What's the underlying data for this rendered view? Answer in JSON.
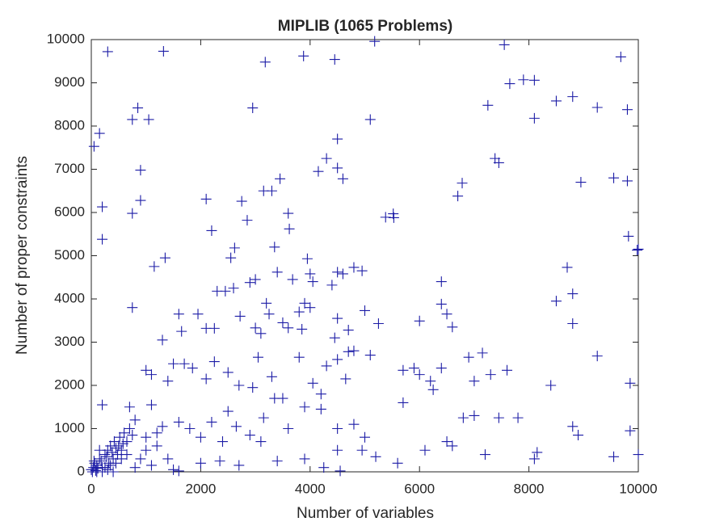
{
  "chart_data": {
    "type": "scatter",
    "title": "MIPLIB (1065 Problems)",
    "x_label": "Number of variables",
    "y_label": "Number of proper constraints",
    "color": "#1c1ca6",
    "xlim": [
      0,
      10000
    ],
    "ylim": [
      0,
      10000
    ],
    "xticks": [
      0,
      2000,
      4000,
      6000,
      8000,
      10000
    ],
    "yticks": [
      0,
      1000,
      2000,
      3000,
      4000,
      5000,
      6000,
      7000,
      8000,
      9000,
      10000
    ],
    "x": [
      300,
      1320,
      3180,
      3880,
      4450,
      5180,
      7550,
      9680,
      750,
      850,
      1050,
      2950,
      5100,
      7250,
      7650,
      7900,
      8100,
      8500,
      8800,
      9250,
      9800,
      8100,
      50,
      150,
      900,
      4150,
      4300,
      4500,
      4500,
      4600,
      7380,
      7450,
      6780,
      6700,
      9550,
      9800,
      8950,
      200,
      750,
      900,
      2100,
      2750,
      3150,
      3300,
      3450,
      3600,
      3620,
      2850,
      5380,
      5520,
      5530,
      200,
      1150,
      1350,
      2200,
      2550,
      2620,
      3350,
      3400,
      3680,
      3950,
      4000,
      4500,
      4600,
      4800,
      4950,
      9820,
      10000,
      9980,
      8700,
      750,
      1300,
      1600,
      1650,
      1950,
      2100,
      2250,
      2300,
      2450,
      2600,
      2720,
      2900,
      3000,
      3000,
      3100,
      3200,
      3250,
      3500,
      3600,
      3800,
      3850,
      3900,
      4000,
      4050,
      4400,
      4450,
      4500,
      4700,
      4700,
      4800,
      5000,
      5250,
      6000,
      6400,
      6400,
      6500,
      6600,
      8500,
      8800,
      8800,
      1000,
      1100,
      1400,
      1500,
      1700,
      1850,
      2100,
      2250,
      2500,
      2700,
      2950,
      3050,
      3300,
      3350,
      3500,
      3800,
      4050,
      4200,
      4300,
      4500,
      4650,
      5100,
      5700,
      5900,
      6000,
      6200,
      6250,
      6400,
      6900,
      7000,
      7150,
      7300,
      7600,
      8400,
      9250,
      9850,
      200,
      700,
      800,
      1100,
      1300,
      1600,
      1800,
      2000,
      2200,
      2400,
      2500,
      2650,
      2900,
      3100,
      3150,
      3600,
      3900,
      4200,
      4500,
      4800,
      5000,
      5700,
      6100,
      6500,
      6600,
      6800,
      7000,
      7200,
      7450,
      7800,
      8100,
      8150,
      8800,
      8900,
      9550,
      9850,
      10000,
      2000,
      2350,
      2700,
      3400,
      3900,
      4250,
      4500,
      4550,
      4950,
      5200,
      5600,
      1600,
      1100,
      1500,
      0,
      20,
      40,
      60,
      80,
      100,
      120,
      150,
      180,
      200,
      250,
      280,
      300,
      320,
      350,
      380,
      400,
      420,
      450,
      480,
      500,
      520,
      550,
      580,
      600,
      650,
      700,
      750,
      100,
      200,
      300,
      400,
      50,
      150,
      250,
      350,
      450,
      550,
      650,
      900,
      1000,
      1200,
      1400,
      800,
      1000,
      1200
    ],
    "values": [
      9720,
      9730,
      9480,
      9620,
      9540,
      9960,
      9880,
      9600,
      8150,
      8420,
      8150,
      8420,
      8150,
      8480,
      8980,
      9070,
      9060,
      8580,
      8680,
      8430,
      8380,
      8180,
      7530,
      7830,
      6980,
      6950,
      7250,
      7700,
      7030,
      6780,
      7250,
      7150,
      6680,
      6380,
      6800,
      6730,
      6700,
      6130,
      5980,
      6280,
      6310,
      6260,
      6500,
      6500,
      6780,
      5980,
      5620,
      5820,
      5890,
      5970,
      5880,
      5380,
      4750,
      4950,
      5580,
      4950,
      5180,
      5200,
      4620,
      4450,
      4930,
      4580,
      4620,
      4580,
      4730,
      4650,
      5450,
      5150,
      5130,
      4730,
      3800,
      3050,
      3650,
      3250,
      3650,
      3320,
      3320,
      4180,
      4180,
      4250,
      3600,
      4380,
      4450,
      3330,
      3200,
      3900,
      3650,
      3450,
      3330,
      3700,
      3300,
      3900,
      3800,
      4400,
      4320,
      3100,
      3550,
      3280,
      2780,
      2800,
      3730,
      3430,
      3490,
      4400,
      3880,
      3650,
      3350,
      3950,
      4120,
      3430,
      2350,
      2250,
      2100,
      2500,
      2500,
      2400,
      2150,
      2550,
      2300,
      2000,
      1950,
      2650,
      2200,
      1700,
      1700,
      2650,
      2050,
      1800,
      2450,
      2600,
      2150,
      2700,
      2350,
      2400,
      2250,
      2100,
      1900,
      2400,
      2650,
      2100,
      2750,
      2250,
      2350,
      2000,
      2680,
      2050,
      1550,
      1500,
      1200,
      1550,
      1050,
      1150,
      1000,
      800,
      1150,
      700,
      1400,
      1050,
      850,
      700,
      1250,
      1000,
      1500,
      1450,
      1000,
      1100,
      800,
      1600,
      500,
      700,
      600,
      1250,
      1300,
      400,
      1250,
      1250,
      300,
      450,
      1050,
      850,
      350,
      950,
      400,
      200,
      250,
      150,
      250,
      300,
      100,
      500,
      20,
      500,
      350,
      200,
      20,
      150,
      50,
      50,
      0,
      100,
      200,
      30,
      150,
      80,
      300,
      250,
      100,
      400,
      350,
      500,
      200,
      600,
      450,
      300,
      700,
      550,
      400,
      600,
      800,
      500,
      650,
      900,
      700,
      1000,
      850,
      0,
      0,
      50,
      0,
      250,
      500,
      100,
      150,
      200,
      300,
      400,
      300,
      500,
      600,
      300,
      100,
      800,
      900
    ]
  }
}
